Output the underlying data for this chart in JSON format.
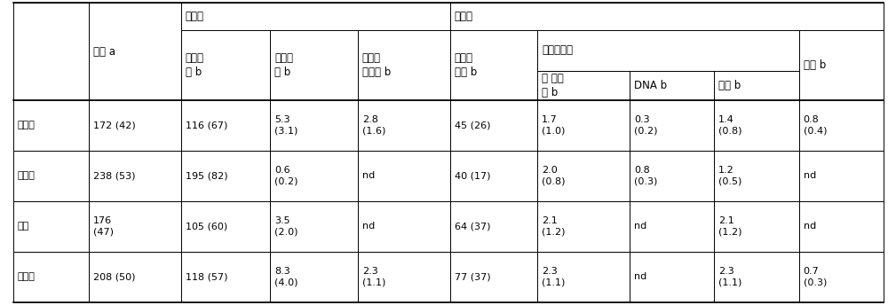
{
  "figsize": [
    10.0,
    3.44
  ],
  "dpi": 100,
  "bg_color": "#ffffff",
  "border_color": "#000000",
  "col0_label": "",
  "col1_label": "总磷 a",
  "wuji_label": "无机磷",
  "youji_label": "有机磷",
  "zheng_yan_label": "正磷酸\n盐 b",
  "jiao_yan_label": "焦磷酸\n盐 b",
  "wuji_duo_label": "无机多\n磷酸盐 b",
  "dan_zhi_label": "正磷酸\n单酯 b",
  "er_zhi_label": "正磷酸二酯",
  "lin_suan_label": "膌酸 b",
  "er_zhi_quan_label": "二 酯全\n量 b",
  "dna_label": "DNA b",
  "lin_zhi_label": "磷脂 b",
  "row_labels": [
    "玉米地",
    "水稺田",
    "林地",
    "擂荒地"
  ],
  "data_rows": [
    [
      "172 (42)",
      "116 (67)",
      "5.3\n(3.1)",
      "2.8\n(1.6)",
      "45 (26)",
      "1.7\n(1.0)",
      "0.3\n(0.2)",
      "1.4\n(0.8)",
      "0.8\n(0.4)"
    ],
    [
      "238 (53)",
      "195 (82)",
      "0.6\n(0.2)",
      "nd",
      "40 (17)",
      "2.0\n(0.8)",
      "0.8\n(0.3)",
      "1.2\n(0.5)",
      "nd"
    ],
    [
      "176\n(47)",
      "105 (60)",
      "3.5\n(2.0)",
      "nd",
      "64 (37)",
      "2.1\n(1.2)",
      "nd",
      "2.1\n(1.2)",
      "nd"
    ],
    [
      "208 (50)",
      "118 (57)",
      "8.3\n(4.0)",
      "2.3\n(1.1)",
      "77 (37)",
      "2.3\n(1.1)",
      "nd",
      "2.3\n(1.1)",
      "0.7\n(0.3)"
    ]
  ],
  "font_size": 8.0,
  "header_font_size": 8.5
}
